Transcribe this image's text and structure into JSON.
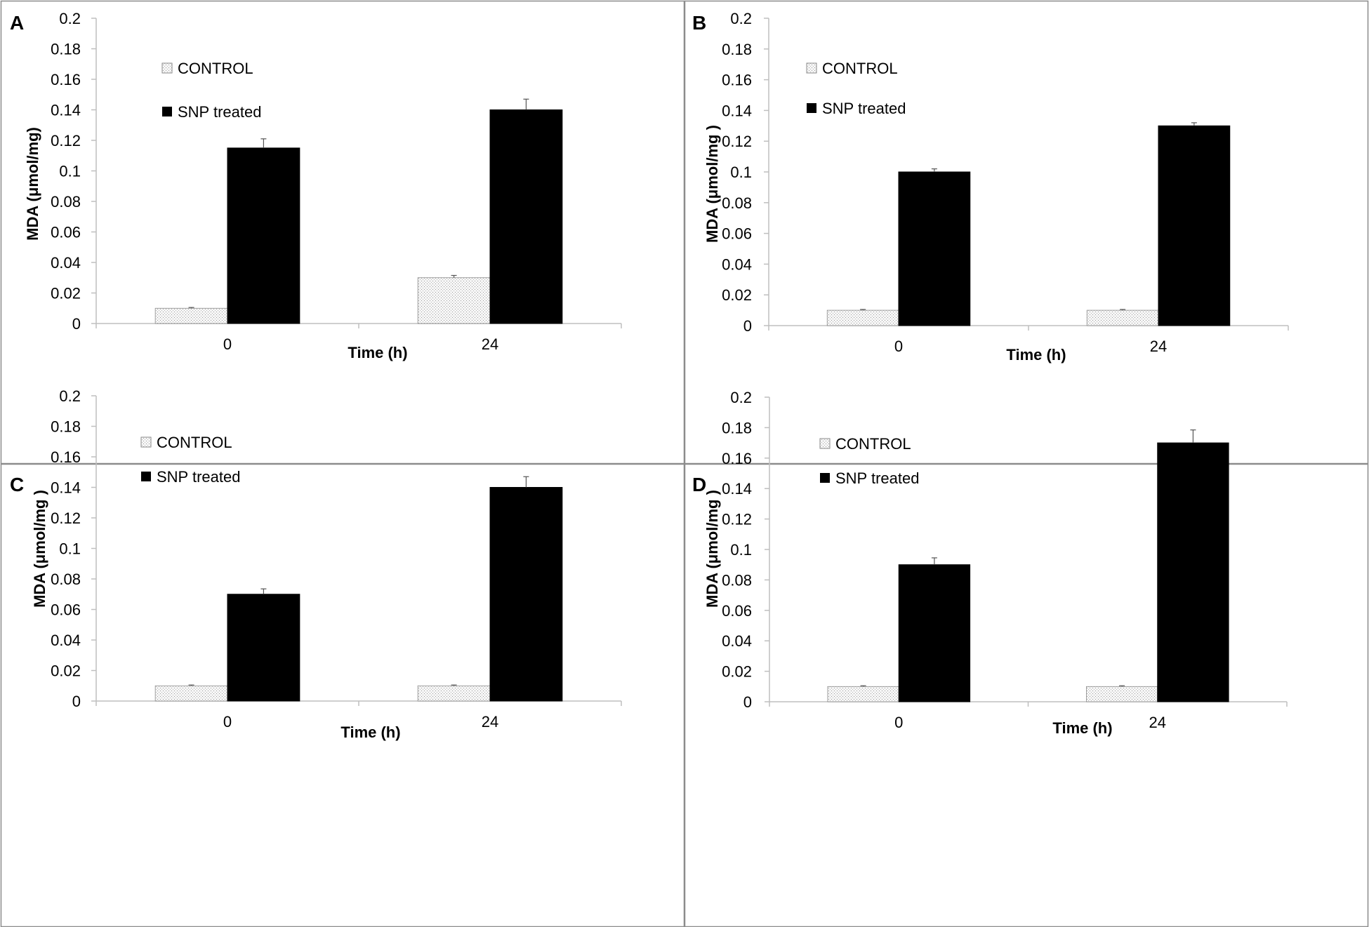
{
  "colors": {
    "control_fill": "#efefef",
    "control_stroke": "#8a8a8a",
    "snp_fill": "#000000",
    "axis": "#bfbfbf",
    "frame": "#8c8c8c"
  },
  "chart_data": [
    {
      "panel": "A",
      "type": "bar",
      "categories": [
        "0",
        "24"
      ],
      "series": [
        {
          "name": "CONTROL",
          "values": [
            0.01,
            0.03
          ],
          "errors": [
            0.0005,
            0.0015
          ]
        },
        {
          "name": "SNP treated",
          "values": [
            0.115,
            0.14
          ],
          "errors": [
            0.006,
            0.007
          ]
        }
      ],
      "xlabel": "Time (h)",
      "ylabel": "MDA (μmol/mg)",
      "ylim": [
        0,
        0.2
      ],
      "yticks": [
        "0",
        "0.02",
        "0.04",
        "0.06",
        "0.08",
        "0.1",
        "0.12",
        "0.14",
        "0.16",
        "0.18",
        "0.2"
      ],
      "legend": "top-left"
    },
    {
      "panel": "B",
      "type": "bar",
      "categories": [
        "0",
        "24"
      ],
      "series": [
        {
          "name": "CONTROL",
          "values": [
            0.01,
            0.01
          ],
          "errors": [
            0.0005,
            0.0005
          ]
        },
        {
          "name": "SNP treated",
          "values": [
            0.1,
            0.13
          ],
          "errors": [
            0.002,
            0.002
          ]
        }
      ],
      "xlabel": "Time (h)",
      "ylabel": "MDA (μmol/mg )",
      "ylim": [
        0,
        0.2
      ],
      "yticks": [
        "0",
        "0.02",
        "0.04",
        "0.06",
        "0.08",
        "0.1",
        "0.12",
        "0.14",
        "0.16",
        "0.18",
        "0.2"
      ],
      "legend": "top-left"
    },
    {
      "panel": "C",
      "type": "bar",
      "categories": [
        "0",
        "24"
      ],
      "series": [
        {
          "name": "CONTROL",
          "values": [
            0.01,
            0.01
          ],
          "errors": [
            0.0005,
            0.0005
          ]
        },
        {
          "name": "SNP treated",
          "values": [
            0.07,
            0.14
          ],
          "errors": [
            0.0035,
            0.007
          ]
        }
      ],
      "xlabel": "Time (h)",
      "ylabel": "MDA (μmol/mg )",
      "ylim": [
        0,
        0.2
      ],
      "yticks": [
        "0",
        "0.02",
        "0.04",
        "0.06",
        "0.08",
        "0.1",
        "0.12",
        "0.14",
        "0.16",
        "0.18",
        "0.2"
      ],
      "legend": "top-left"
    },
    {
      "panel": "D",
      "type": "bar",
      "categories": [
        "0",
        "24"
      ],
      "series": [
        {
          "name": "CONTROL",
          "values": [
            0.01,
            0.01
          ],
          "errors": [
            0.0005,
            0.0005
          ]
        },
        {
          "name": "SNP treated",
          "values": [
            0.09,
            0.17
          ],
          "errors": [
            0.0045,
            0.0085
          ]
        }
      ],
      "xlabel": "Time (h)",
      "ylabel": "MDA (μmol/mg )",
      "ylim": [
        0,
        0.2
      ],
      "yticks": [
        "0",
        "0.02",
        "0.04",
        "0.06",
        "0.08",
        "0.1",
        "0.12",
        "0.14",
        "0.16",
        "0.18",
        "0.2"
      ],
      "legend": "top-left"
    }
  ]
}
